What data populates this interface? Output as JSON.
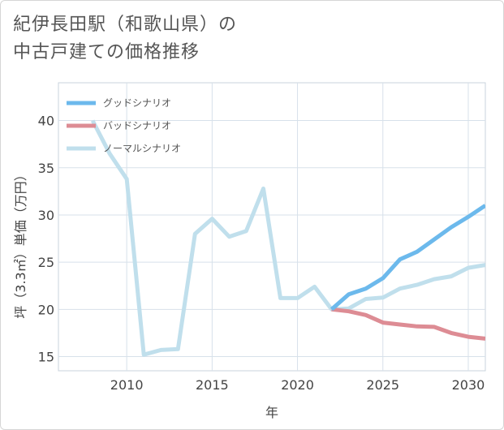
{
  "title_lines": [
    "紀伊長田駅（和歌山県）の",
    "中古戸建ての価格推移"
  ],
  "chart_data": {
    "type": "line",
    "title": "紀伊長田駅（和歌山県）の中古戸建ての価格推移",
    "xlabel": "年",
    "ylabel": "坪（3.3㎡）単価（万円）",
    "xlim": [
      2006,
      2031
    ],
    "ylim": [
      13.5,
      44
    ],
    "xticks": [
      2010,
      2015,
      2020,
      2025,
      2030
    ],
    "yticks": [
      15,
      20,
      25,
      30,
      35,
      40
    ],
    "grid": true,
    "legend_position": "top-left",
    "series": [
      {
        "name": "グッドシナリオ",
        "color": "#6cb9ec",
        "x": [
          2022,
          2023,
          2024,
          2025,
          2026,
          2027,
          2028,
          2029,
          2030,
          2031
        ],
        "values": [
          20.0,
          21.6,
          22.2,
          23.3,
          25.3,
          26.1,
          27.4,
          28.7,
          29.8,
          31.0
        ]
      },
      {
        "name": "バッドシナリオ",
        "color": "#dd8c94",
        "x": [
          2022,
          2023,
          2024,
          2025,
          2026,
          2027,
          2028,
          2029,
          2030,
          2031
        ],
        "values": [
          20.0,
          19.8,
          19.4,
          18.6,
          18.4,
          18.2,
          18.15,
          17.5,
          17.1,
          16.9
        ]
      },
      {
        "name": "ノーマルシナリオ",
        "color": "#c0dfec",
        "x": [
          2008,
          2009,
          2010,
          2011,
          2012,
          2013,
          2014,
          2015,
          2016,
          2017,
          2018,
          2019,
          2020,
          2021,
          2022,
          2023,
          2024,
          2025,
          2026,
          2027,
          2028,
          2029,
          2030,
          2031
        ],
        "values": [
          40.0,
          36.5,
          33.8,
          15.2,
          15.7,
          15.8,
          28.0,
          29.6,
          27.7,
          28.3,
          32.8,
          21.2,
          21.2,
          22.4,
          20.0,
          20.1,
          21.1,
          21.25,
          22.2,
          22.6,
          23.2,
          23.5,
          24.4,
          24.7
        ]
      }
    ]
  }
}
